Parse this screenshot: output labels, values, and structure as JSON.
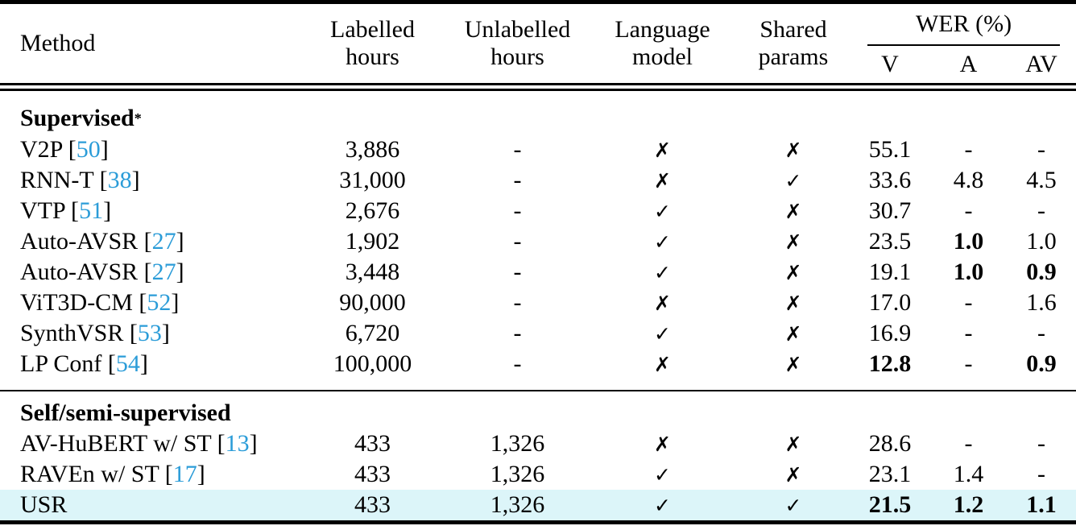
{
  "colors": {
    "citation": "#2b9cd8",
    "highlight": "#dcf5f9",
    "rule": "#000000"
  },
  "header": {
    "method": "Method",
    "labelled_line1": "Labelled",
    "labelled_line2": "hours",
    "unlabelled_line1": "Unlabelled",
    "unlabelled_line2": "hours",
    "language_line1": "Language",
    "language_line2": "model",
    "shared_line1": "Shared",
    "shared_line2": "params",
    "wer_group": "WER (%)",
    "wer_v": "V",
    "wer_a": "A",
    "wer_av": "AV"
  },
  "sections": [
    {
      "title": "Supervised",
      "title_sup": "*",
      "rows": [
        {
          "method_pre": "V2P [",
          "cite": "50",
          "method_post": "]",
          "labelled": "3,886",
          "unlabelled": "-",
          "lm": "✗",
          "shared": "✗",
          "v": "55.1",
          "a": "-",
          "av": "-"
        },
        {
          "method_pre": "RNN-T [",
          "cite": "38",
          "method_post": "]",
          "labelled": "31,000",
          "unlabelled": "-",
          "lm": "✗",
          "shared": "✓",
          "v": "33.6",
          "a": "4.8",
          "av": "4.5"
        },
        {
          "method_pre": "VTP [",
          "cite": "51",
          "method_post": "]",
          "labelled": "2,676",
          "unlabelled": "-",
          "lm": "✓",
          "shared": "✗",
          "v": "30.7",
          "a": "-",
          "av": "-"
        },
        {
          "method_pre": "Auto-AVSR [",
          "cite": "27",
          "method_post": "]",
          "labelled": "1,902",
          "unlabelled": "-",
          "lm": "✓",
          "shared": "✗",
          "v": "23.5",
          "a": "1.0",
          "a_bold": true,
          "av": "1.0"
        },
        {
          "method_pre": "Auto-AVSR [",
          "cite": "27",
          "method_post": "]",
          "labelled": "3,448",
          "unlabelled": "-",
          "lm": "✓",
          "shared": "✗",
          "v": "19.1",
          "a": "1.0",
          "a_bold": true,
          "av": "0.9",
          "av_bold": true
        },
        {
          "method_pre": "ViT3D-CM [",
          "cite": "52",
          "method_post": "]",
          "labelled": "90,000",
          "unlabelled": "-",
          "lm": "✗",
          "shared": "✗",
          "v": "17.0",
          "a": "-",
          "av": "1.6"
        },
        {
          "method_pre": "SynthVSR [",
          "cite": "53",
          "method_post": "]",
          "labelled": "6,720",
          "unlabelled": "-",
          "lm": "✓",
          "shared": "✗",
          "v": "16.9",
          "a": "-",
          "av": "-"
        },
        {
          "method_pre": "LP Conf [",
          "cite": "54",
          "method_post": "]",
          "labelled": "100,000",
          "unlabelled": "-",
          "lm": "✗",
          "shared": "✗",
          "v": "12.8",
          "v_bold": true,
          "a": "-",
          "av": "0.9",
          "av_bold": true
        }
      ]
    },
    {
      "title": "Self/semi-supervised",
      "title_sup": "",
      "rows": [
        {
          "method_pre": "AV-HuBERT w/ ST [",
          "cite": "13",
          "method_post": "]",
          "labelled": "433",
          "unlabelled": "1,326",
          "lm": "✗",
          "shared": "✗",
          "v": "28.6",
          "a": "-",
          "av": "-"
        },
        {
          "method_pre": "RAVEn w/ ST [",
          "cite": "17",
          "method_post": "]",
          "labelled": "433",
          "unlabelled": "1,326",
          "lm": "✓",
          "shared": "✗",
          "v": "23.1",
          "a": "1.4",
          "av": "-"
        },
        {
          "method_pre": "USR",
          "cite": "",
          "method_post": "",
          "labelled": "433",
          "unlabelled": "1,326",
          "lm": "✓",
          "shared": "✓",
          "v": "21.5",
          "v_bold": true,
          "a": "1.2",
          "a_bold": true,
          "av": "1.1",
          "av_bold": true,
          "highlighted": true
        }
      ]
    }
  ]
}
